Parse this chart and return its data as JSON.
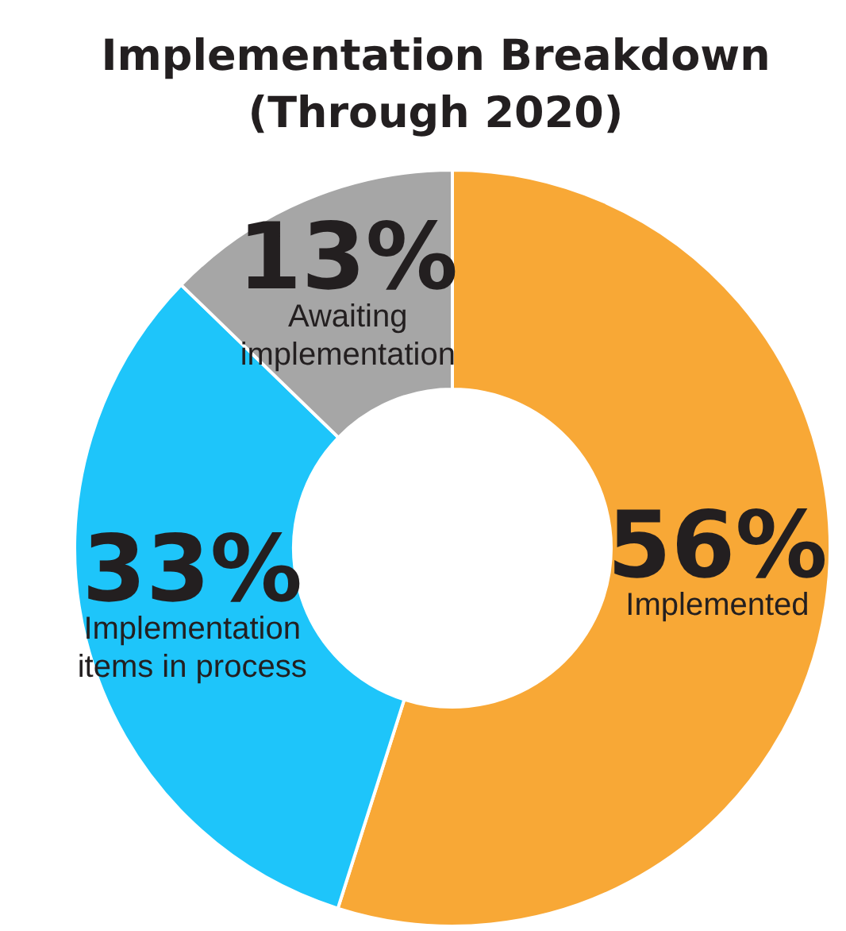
{
  "chart_data": {
    "type": "donut",
    "title": "Implementation Breakdown (Through 2020)",
    "categories": [
      "Implemented",
      "Implementation items in process",
      "Awaiting implementation"
    ],
    "values": [
      56,
      33,
      13
    ],
    "value_labels": [
      "56%",
      "33%",
      "13%"
    ],
    "colors": [
      "#f8a836",
      "#1ec5fa",
      "#a6a6a6"
    ]
  }
}
